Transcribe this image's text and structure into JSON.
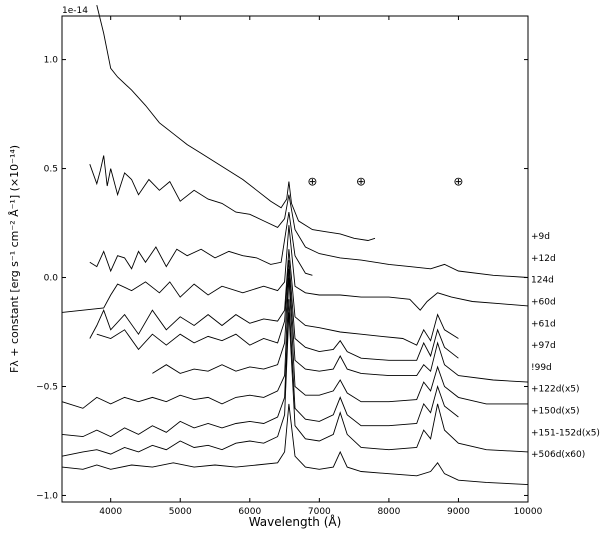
{
  "chart_data": {
    "type": "line",
    "title": "",
    "xlabel": "Wavelength (Å)",
    "ylabel": "Fλ + constant [erg s⁻¹ cm⁻² Å⁻¹] (×10⁻¹⁴)",
    "offset_label": "1e-14",
    "xlim": [
      3300,
      10000
    ],
    "ylim": [
      -1.03,
      1.2
    ],
    "x_ticks": [
      4000,
      5000,
      6000,
      7000,
      8000,
      9000,
      10000
    ],
    "y_ticks": [
      -1.0,
      -0.5,
      0.0,
      0.5,
      1.0
    ],
    "x_tick_labels": [
      "4000",
      "5000",
      "6000",
      "7000",
      "8000",
      "9000",
      "10000"
    ],
    "y_tick_labels": [
      "−1.0",
      "−0.5",
      "0.0",
      "0.5",
      "1.0"
    ],
    "grid": false,
    "telluric_symbol": "⊕",
    "telluric_x": [
      6900,
      7600,
      9000
    ],
    "telluric_y": 0.44,
    "series": [
      {
        "name": "+9d",
        "label_y": 0.19,
        "x": [
          3800,
          3900,
          4000,
          4100,
          4300,
          4500,
          4700,
          4900,
          5100,
          5300,
          5500,
          5700,
          5900,
          6100,
          6300,
          6450,
          6530,
          6563,
          6600,
          6700,
          6900,
          7100,
          7300,
          7500,
          7700,
          7800
        ],
        "y": [
          1.25,
          1.12,
          0.96,
          0.92,
          0.86,
          0.79,
          0.71,
          0.66,
          0.61,
          0.57,
          0.53,
          0.49,
          0.45,
          0.4,
          0.35,
          0.32,
          0.36,
          0.44,
          0.34,
          0.26,
          0.22,
          0.21,
          0.2,
          0.18,
          0.17,
          0.18
        ]
      },
      {
        "name": "+12d",
        "label_y": 0.09,
        "x": [
          3700,
          3800,
          3850,
          3900,
          3950,
          4000,
          4100,
          4200,
          4300,
          4400,
          4550,
          4700,
          4850,
          5000,
          5200,
          5400,
          5600,
          5800,
          6000,
          6200,
          6400,
          6500,
          6563,
          6650,
          6800,
          7000,
          7300,
          7600,
          8000,
          8300,
          8600,
          8800,
          9000,
          9500,
          10000
        ],
        "y": [
          0.52,
          0.43,
          0.49,
          0.56,
          0.42,
          0.5,
          0.38,
          0.48,
          0.45,
          0.38,
          0.45,
          0.4,
          0.44,
          0.35,
          0.4,
          0.36,
          0.34,
          0.3,
          0.29,
          0.26,
          0.23,
          0.27,
          0.38,
          0.22,
          0.14,
          0.11,
          0.09,
          0.08,
          0.06,
          0.05,
          0.04,
          0.06,
          0.03,
          0.01,
          0.0
        ]
      },
      {
        "name": "124d",
        "label_y": -0.01,
        "x": [
          3700,
          3800,
          3900,
          4000,
          4100,
          4200,
          4300,
          4400,
          4500,
          4650,
          4800,
          4950,
          5100,
          5300,
          5500,
          5700,
          5900,
          6100,
          6300,
          6450,
          6563,
          6650,
          6800,
          6900
        ],
        "y": [
          0.07,
          0.05,
          0.12,
          0.03,
          0.1,
          0.09,
          0.04,
          0.12,
          0.07,
          0.14,
          0.05,
          0.13,
          0.1,
          0.13,
          0.09,
          0.12,
          0.1,
          0.09,
          0.06,
          0.07,
          0.3,
          0.1,
          0.02,
          0.01
        ]
      },
      {
        "name": "+60d",
        "label_y": -0.11,
        "x": [
          3300,
          3600,
          3900,
          4000,
          4100,
          4300,
          4500,
          4700,
          4850,
          5000,
          5200,
          5400,
          5600,
          5900,
          6200,
          6400,
          6500,
          6563,
          6650,
          6800,
          7000,
          7300,
          7600,
          8000,
          8300,
          8450,
          8550,
          8700,
          8900,
          9200,
          9600,
          10000
        ],
        "y": [
          -0.16,
          -0.15,
          -0.14,
          -0.08,
          -0.03,
          -0.06,
          -0.02,
          -0.07,
          -0.02,
          -0.09,
          -0.03,
          -0.08,
          -0.04,
          -0.07,
          -0.04,
          -0.06,
          -0.02,
          0.24,
          -0.04,
          -0.07,
          -0.08,
          -0.08,
          -0.09,
          -0.09,
          -0.1,
          -0.15,
          -0.11,
          -0.07,
          -0.09,
          -0.11,
          -0.12,
          -0.13
        ]
      },
      {
        "name": "+61d",
        "label_y": -0.21,
        "x": [
          3700,
          3800,
          3900,
          4000,
          4200,
          4400,
          4600,
          4800,
          5000,
          5200,
          5400,
          5600,
          5800,
          6000,
          6200,
          6400,
          6500,
          6563,
          6650,
          6800,
          7000,
          7300,
          7600,
          7900,
          8200,
          8400,
          8500,
          8600,
          8700,
          8800,
          9000
        ],
        "y": [
          -0.28,
          -0.22,
          -0.15,
          -0.24,
          -0.17,
          -0.26,
          -0.15,
          -0.24,
          -0.18,
          -0.22,
          -0.17,
          -0.22,
          -0.17,
          -0.21,
          -0.19,
          -0.2,
          -0.15,
          0.13,
          -0.18,
          -0.22,
          -0.23,
          -0.25,
          -0.26,
          -0.27,
          -0.28,
          -0.31,
          -0.24,
          -0.29,
          -0.17,
          -0.24,
          -0.28
        ]
      },
      {
        "name": "+97d",
        "label_y": -0.31,
        "x": [
          3800,
          4000,
          4200,
          4400,
          4600,
          4800,
          5000,
          5200,
          5400,
          5600,
          5800,
          6000,
          6200,
          6400,
          6500,
          6563,
          6650,
          6800,
          7000,
          7200,
          7300,
          7400,
          7600,
          8000,
          8400,
          8500,
          8600,
          8700,
          8800,
          9000
        ],
        "y": [
          -0.26,
          -0.28,
          -0.24,
          -0.33,
          -0.26,
          -0.31,
          -0.26,
          -0.3,
          -0.27,
          -0.29,
          -0.26,
          -0.31,
          -0.28,
          -0.3,
          -0.2,
          0.08,
          -0.28,
          -0.32,
          -0.34,
          -0.33,
          -0.29,
          -0.34,
          -0.37,
          -0.38,
          -0.38,
          -0.3,
          -0.36,
          -0.24,
          -0.32,
          -0.37
        ]
      },
      {
        "name": "!99d",
        "label_y": -0.41,
        "x": [
          4600,
          4800,
          5000,
          5200,
          5400,
          5600,
          5800,
          6000,
          6200,
          6400,
          6500,
          6563,
          6650,
          6800,
          7000,
          7200,
          7300,
          7400,
          7600,
          8000,
          8400,
          8500,
          8600,
          8700,
          8800,
          9000,
          9500,
          10000
        ],
        "y": [
          -0.44,
          -0.4,
          -0.44,
          -0.42,
          -0.43,
          -0.4,
          -0.43,
          -0.41,
          -0.42,
          -0.4,
          -0.3,
          0.04,
          -0.38,
          -0.42,
          -0.43,
          -0.42,
          -0.36,
          -0.42,
          -0.44,
          -0.45,
          -0.45,
          -0.4,
          -0.43,
          -0.3,
          -0.4,
          -0.45,
          -0.47,
          -0.48
        ]
      },
      {
        "name": "+122d(x5)",
        "label_y": -0.51,
        "x": [
          3300,
          3600,
          3800,
          4000,
          4200,
          4400,
          4600,
          4800,
          5000,
          5200,
          5400,
          5600,
          5800,
          6000,
          6200,
          6400,
          6500,
          6563,
          6650,
          6800,
          7000,
          7200,
          7300,
          7400,
          7600,
          8000,
          8400,
          8500,
          8600,
          8700,
          8800,
          9000,
          9400,
          10000
        ],
        "y": [
          -0.57,
          -0.6,
          -0.55,
          -0.58,
          -0.55,
          -0.57,
          -0.55,
          -0.57,
          -0.54,
          -0.56,
          -0.55,
          -0.58,
          -0.55,
          -0.54,
          -0.55,
          -0.52,
          -0.45,
          0.0,
          -0.5,
          -0.54,
          -0.54,
          -0.52,
          -0.47,
          -0.53,
          -0.57,
          -0.57,
          -0.56,
          -0.48,
          -0.52,
          -0.41,
          -0.5,
          -0.55,
          -0.58,
          -0.58
        ]
      },
      {
        "name": "+150d(x5)",
        "label_y": -0.61,
        "x": [
          3300,
          3600,
          3800,
          4000,
          4200,
          4400,
          4600,
          4800,
          5000,
          5200,
          5400,
          5600,
          5800,
          6000,
          6200,
          6400,
          6500,
          6563,
          6650,
          6800,
          7000,
          7200,
          7300,
          7400,
          7600,
          8000,
          8400,
          8500,
          8600,
          8700,
          8800,
          9000
        ],
        "y": [
          -0.72,
          -0.73,
          -0.7,
          -0.73,
          -0.69,
          -0.72,
          -0.68,
          -0.71,
          -0.66,
          -0.69,
          -0.67,
          -0.69,
          -0.67,
          -0.66,
          -0.67,
          -0.64,
          -0.55,
          -0.1,
          -0.6,
          -0.65,
          -0.66,
          -0.63,
          -0.55,
          -0.63,
          -0.68,
          -0.68,
          -0.67,
          -0.58,
          -0.62,
          -0.5,
          -0.59,
          -0.64
        ]
      },
      {
        "name": "+151-152d(x5)",
        "label_y": -0.71,
        "x": [
          3300,
          3600,
          3800,
          4000,
          4200,
          4400,
          4600,
          4800,
          5000,
          5200,
          5400,
          5600,
          5800,
          6000,
          6200,
          6400,
          6500,
          6563,
          6650,
          6800,
          7000,
          7200,
          7300,
          7400,
          7600,
          8000,
          8400,
          8500,
          8600,
          8700,
          8800,
          9000,
          9400,
          10000
        ],
        "y": [
          -0.82,
          -0.8,
          -0.79,
          -0.81,
          -0.78,
          -0.8,
          -0.77,
          -0.79,
          -0.75,
          -0.78,
          -0.77,
          -0.79,
          -0.76,
          -0.75,
          -0.76,
          -0.73,
          -0.63,
          -0.16,
          -0.68,
          -0.74,
          -0.75,
          -0.72,
          -0.62,
          -0.72,
          -0.78,
          -0.79,
          -0.78,
          -0.7,
          -0.74,
          -0.58,
          -0.7,
          -0.76,
          -0.79,
          -0.8
        ]
      },
      {
        "name": "+506d(x60)",
        "label_y": -0.81,
        "x": [
          3300,
          3600,
          3800,
          4000,
          4300,
          4600,
          4900,
          5200,
          5500,
          5800,
          6100,
          6400,
          6500,
          6563,
          6650,
          6800,
          7000,
          7200,
          7300,
          7400,
          7600,
          8000,
          8400,
          8600,
          8700,
          8800,
          9000,
          9400,
          10000
        ],
        "y": [
          -0.87,
          -0.88,
          -0.86,
          -0.88,
          -0.86,
          -0.87,
          -0.85,
          -0.87,
          -0.86,
          -0.87,
          -0.86,
          -0.85,
          -0.8,
          -0.58,
          -0.82,
          -0.87,
          -0.88,
          -0.87,
          -0.8,
          -0.87,
          -0.89,
          -0.9,
          -0.91,
          -0.89,
          -0.85,
          -0.9,
          -0.93,
          -0.94,
          -0.95
        ]
      }
    ]
  }
}
